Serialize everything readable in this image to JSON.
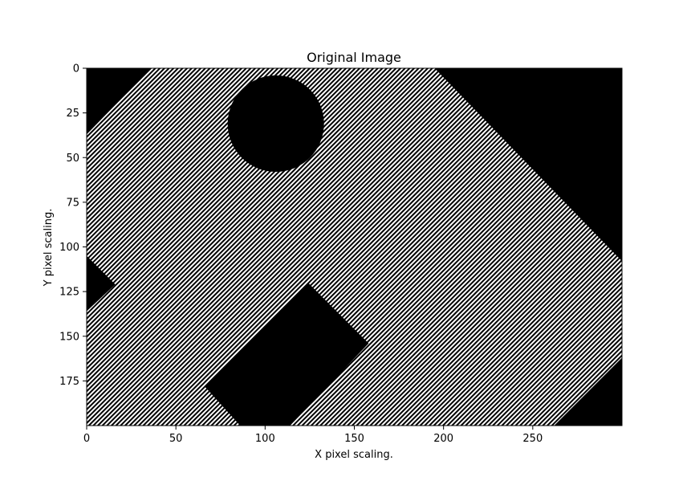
{
  "chart_data": {
    "type": "heatmap",
    "title": "Original Image",
    "xlabel": "X pixel scaling.",
    "ylabel": "Y pixel scaling.",
    "xlim": [
      0,
      300
    ],
    "ylim": [
      200,
      0
    ],
    "x_ticks": [
      0,
      50,
      100,
      150,
      200,
      250
    ],
    "y_ticks": [
      0,
      25,
      50,
      75,
      100,
      125,
      150,
      175
    ],
    "x_tick_labels": [
      "0",
      "50",
      "100",
      "150",
      "200",
      "250"
    ],
    "y_tick_labels": [
      "0",
      "25",
      "50",
      "75",
      "100",
      "125",
      "150",
      "175"
    ],
    "colormap": "gray",
    "background_color": "#000000",
    "pattern_colors": [
      "#000000",
      "#ffffff"
    ],
    "regions": [
      {
        "name": "textured-board",
        "kind": "polygon",
        "fill": "pattern",
        "points": [
          [
            36,
            0
          ],
          [
            195,
            0
          ],
          [
            300,
            108
          ],
          [
            300,
            162
          ],
          [
            262,
            200
          ],
          [
            0,
            200
          ],
          [
            0,
            37
          ]
        ]
      },
      {
        "name": "corner-notch-left",
        "kind": "polygon",
        "fill": "#000000",
        "points": [
          [
            0,
            105
          ],
          [
            16,
            121
          ],
          [
            0,
            136
          ]
        ]
      },
      {
        "name": "circle-blob",
        "kind": "ellipse",
        "fill": "#000000",
        "center": [
          106,
          31
        ],
        "radius": [
          27,
          27
        ]
      },
      {
        "name": "rotated-rectangle",
        "kind": "polygon",
        "fill": "#000000",
        "points": [
          [
            124,
            120
          ],
          [
            158,
            154
          ],
          [
            114,
            200
          ],
          [
            86,
            200
          ],
          [
            66,
            178
          ]
        ]
      }
    ]
  }
}
